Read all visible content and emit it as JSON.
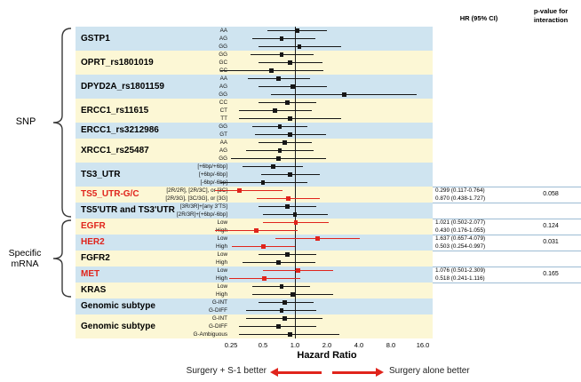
{
  "header": {
    "hr_col": "HR (95% CI)",
    "p_col": "p-value for interaction"
  },
  "groups": {
    "snp": "SNP",
    "mrna_line1": "Specific",
    "mrna_line2": "mRNA"
  },
  "axis": {
    "label": "Hazard Ratio",
    "ticks": [
      "0.25",
      "0.5",
      "1.0",
      "2.0",
      "4.0",
      "8.0",
      "16.0"
    ]
  },
  "footer": {
    "left_text": "Surgery + S-1 better",
    "right_text": "Surgery alone better"
  },
  "colors": {
    "band_blue": "#cfe4f0",
    "band_yellow": "#fcf7d5",
    "red": "#e0241c",
    "black": "#161616",
    "rule_blue": "#9dbcd4"
  },
  "chart_data": {
    "type": "forest",
    "x_axis": {
      "scale": "log",
      "ticks": [
        0.25,
        0.5,
        1.0,
        2.0,
        4.0,
        8.0,
        16.0
      ],
      "reference_line": 1.0,
      "label": "Hazard Ratio"
    },
    "blocks": [
      {
        "name": "GSTP1",
        "red": false,
        "bg": "blue",
        "p": "",
        "items": [
          {
            "label": "AA",
            "hr": 1.05,
            "lo": 0.55,
            "hi": 2.0
          },
          {
            "label": "AG",
            "hr": 0.75,
            "lo": 0.4,
            "hi": 1.55
          },
          {
            "label": "GG",
            "hr": 1.1,
            "lo": 0.45,
            "hi": 2.7
          }
        ]
      },
      {
        "name": "OPRT_rs1801019",
        "red": false,
        "bg": "yellow",
        "p": "",
        "items": [
          {
            "label": "GG",
            "hr": 0.75,
            "lo": 0.38,
            "hi": 1.5
          },
          {
            "label": "GC",
            "hr": 0.9,
            "lo": 0.45,
            "hi": 1.8
          },
          {
            "label": "CC",
            "hr": 0.6,
            "lo": 0.2,
            "hi": 1.85
          }
        ]
      },
      {
        "name": "DPYD2A_rs1801159",
        "red": false,
        "bg": "blue",
        "p": "",
        "items": [
          {
            "label": "AA",
            "hr": 0.7,
            "lo": 0.36,
            "hi": 1.38
          },
          {
            "label": "AG",
            "hr": 0.95,
            "lo": 0.45,
            "hi": 2.0
          },
          {
            "label": "GG",
            "hr": 2.9,
            "lo": 0.6,
            "hi": 14.0
          }
        ]
      },
      {
        "name": "ERCC1_rs11615",
        "red": false,
        "bg": "yellow",
        "p": "",
        "items": [
          {
            "label": "CC",
            "hr": 0.85,
            "lo": 0.45,
            "hi": 1.6
          },
          {
            "label": "CT",
            "hr": 0.65,
            "lo": 0.3,
            "hi": 1.45
          },
          {
            "label": "TT",
            "hr": 0.9,
            "lo": 0.3,
            "hi": 2.7
          }
        ]
      },
      {
        "name": "ERCC1_rs3212986",
        "red": false,
        "bg": "blue",
        "p": "",
        "items": [
          {
            "label": "GG",
            "hr": 0.72,
            "lo": 0.4,
            "hi": 1.3
          },
          {
            "label": "GT",
            "hr": 0.9,
            "lo": 0.42,
            "hi": 1.95
          }
        ]
      },
      {
        "name": "XRCC1_rs25487",
        "red": false,
        "bg": "yellow",
        "p": "",
        "items": [
          {
            "label": "AA",
            "hr": 0.8,
            "lo": 0.45,
            "hi": 1.45
          },
          {
            "label": "AG",
            "hr": 0.72,
            "lo": 0.35,
            "hi": 1.5
          },
          {
            "label": "GG",
            "hr": 0.7,
            "lo": 0.25,
            "hi": 1.95
          }
        ]
      },
      {
        "name": "TS3_UTR",
        "red": false,
        "bg": "blue",
        "p": "",
        "items": [
          {
            "label": "[+6bp/+6bp]",
            "hr": 0.62,
            "lo": 0.32,
            "hi": 1.2
          },
          {
            "label": "[+6bp/-6bp]",
            "hr": 0.9,
            "lo": 0.48,
            "hi": 1.7
          },
          {
            "label": "[-6bp/-6bp]",
            "hr": 0.5,
            "lo": 0.2,
            "hi": 1.3
          }
        ]
      },
      {
        "name": "TS5_UTR-G/C",
        "red": true,
        "bg": "yellow",
        "p": "0.058",
        "items": [
          {
            "label": "[2R/2R], [2R/3C], or [3C]",
            "hr": 0.299,
            "lo": 0.117,
            "hi": 0.764,
            "hr_text": "0.299 (0.117-0.764)"
          },
          {
            "label": "[2R/3G], [3C/3G], or [3G]",
            "hr": 0.87,
            "lo": 0.438,
            "hi": 1.727,
            "hr_text": "0.870 (0.438-1.727)"
          }
        ]
      },
      {
        "name": "TS5'UTR and TS3'UTR",
        "red": false,
        "bg": "blue",
        "p": "",
        "items": [
          {
            "label": "[3R/3R]+[any 3'TS]",
            "hr": 0.85,
            "lo": 0.45,
            "hi": 1.6
          },
          {
            "label": "[2R/3R]+[+6bp/-6bp]",
            "hr": 1.0,
            "lo": 0.5,
            "hi": 2.05
          }
        ]
      },
      {
        "name": "EGFR",
        "red": true,
        "bg": "yellow",
        "p": "0.124",
        "items": [
          {
            "label": "Low",
            "hr": 1.021,
            "lo": 0.502,
            "hi": 2.077,
            "hr_text": "1.021 (0.502-2.077)"
          },
          {
            "label": "High",
            "hr": 0.43,
            "lo": 0.176,
            "hi": 1.055,
            "hr_text": "0.430 (0.176-1.055)"
          }
        ]
      },
      {
        "name": "HER2",
        "red": true,
        "bg": "blue",
        "p": "0.031",
        "items": [
          {
            "label": "Low",
            "hr": 1.637,
            "lo": 0.657,
            "hi": 4.079,
            "hr_text": "1.637 (0.657-4.079)"
          },
          {
            "label": "High",
            "hr": 0.503,
            "lo": 0.254,
            "hi": 0.997,
            "hr_text": "0.503 (0.254-0.997)"
          }
        ]
      },
      {
        "name": "FGFR2",
        "red": false,
        "bg": "yellow",
        "p": "",
        "items": [
          {
            "label": "Low",
            "hr": 0.85,
            "lo": 0.45,
            "hi": 1.6
          },
          {
            "label": "High",
            "hr": 0.7,
            "lo": 0.32,
            "hi": 1.55
          }
        ]
      },
      {
        "name": "MET",
        "red": true,
        "bg": "blue",
        "p": "0.165",
        "items": [
          {
            "label": "Low",
            "hr": 1.076,
            "lo": 0.501,
            "hi": 2.309,
            "hr_text": "1.076 (0.501-2.309)"
          },
          {
            "label": "High",
            "hr": 0.518,
            "lo": 0.241,
            "hi": 1.116,
            "hr_text": "0.518 (0.241-1.116)"
          }
        ]
      },
      {
        "name": "KRAS",
        "red": false,
        "bg": "yellow",
        "p": "",
        "items": [
          {
            "label": "Low",
            "hr": 0.75,
            "lo": 0.4,
            "hi": 1.4
          },
          {
            "label": "High",
            "hr": 0.95,
            "lo": 0.4,
            "hi": 2.3
          }
        ]
      },
      {
        "name": "Genomic subtype",
        "red": false,
        "bg": "blue",
        "p": "",
        "items": [
          {
            "label": "G-INT",
            "hr": 0.8,
            "lo": 0.45,
            "hi": 1.5
          },
          {
            "label": "G-DIFF",
            "hr": 0.75,
            "lo": 0.35,
            "hi": 1.6
          }
        ]
      },
      {
        "name": "Genomic subtype",
        "red": false,
        "bg": "yellow",
        "p": "",
        "items": [
          {
            "label": "G-INT",
            "hr": 0.8,
            "lo": 0.35,
            "hi": 1.8
          },
          {
            "label": "G-DIFF",
            "hr": 0.7,
            "lo": 0.3,
            "hi": 1.6
          },
          {
            "label": "G-Ambiguous",
            "hr": 0.9,
            "lo": 0.3,
            "hi": 2.6
          }
        ]
      }
    ]
  }
}
